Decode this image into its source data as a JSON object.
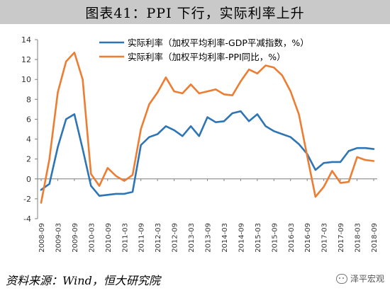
{
  "header": {
    "title": "图表41：PPI 下行，实际利率上升"
  },
  "footer": {
    "source": "资料来源：Wind，恒大研究院",
    "watermark": "泽平宏观",
    "watermark_icon": "wechat-icon"
  },
  "chart_data": {
    "type": "line",
    "title": "",
    "xlabel": "",
    "ylabel": "",
    "ylim": [
      -4,
      14
    ],
    "yticks": [
      -4,
      -2,
      0,
      2,
      4,
      6,
      8,
      10,
      12,
      14
    ],
    "grid": false,
    "legend_position": "top",
    "x": [
      "2008-09",
      "2008-12",
      "2009-03",
      "2009-06",
      "2009-09",
      "2009-12",
      "2010-03",
      "2010-06",
      "2010-09",
      "2010-12",
      "2011-03",
      "2011-06",
      "2011-09",
      "2011-12",
      "2012-03",
      "2012-06",
      "2012-09",
      "2012-12",
      "2013-03",
      "2013-06",
      "2013-09",
      "2013-12",
      "2014-03",
      "2014-06",
      "2014-09",
      "2014-12",
      "2015-03",
      "2015-06",
      "2015-09",
      "2015-12",
      "2016-03",
      "2016-06",
      "2016-09",
      "2016-12",
      "2017-03",
      "2017-06",
      "2017-09",
      "2017-12",
      "2018-03",
      "2018-06",
      "2018-09"
    ],
    "xtick_labels": [
      "2008-09",
      "2009-03",
      "2009-09",
      "2010-03",
      "2010-09",
      "2011-03",
      "2011-09",
      "2012-03",
      "2012-09",
      "2013-03",
      "2013-09",
      "2014-03",
      "2014-09",
      "2015-03",
      "2015-09",
      "2016-03",
      "2016-09",
      "2017-03",
      "2017-09",
      "2018-03",
      "2018-09"
    ],
    "series": [
      {
        "name": "实际利率（加权平均利率-GDP平减指数，%）",
        "color": "#2E75B6",
        "values": [
          -1.1,
          -0.5,
          3.2,
          6.0,
          6.5,
          3.0,
          -0.7,
          -1.7,
          -1.6,
          -1.5,
          -1.5,
          -1.3,
          3.4,
          4.2,
          4.5,
          5.3,
          4.9,
          4.3,
          5.3,
          4.3,
          6.2,
          5.7,
          5.8,
          6.6,
          6.8,
          5.8,
          6.5,
          5.3,
          4.8,
          4.5,
          4.2,
          3.5,
          2.5,
          0.9,
          1.6,
          1.7,
          1.7,
          2.8,
          3.1,
          3.1,
          3.0
        ]
      },
      {
        "name": "实际利率（加权平均利率-PPI同比，%）",
        "color": "#ED7D31",
        "values": [
          -2.4,
          2.0,
          8.7,
          11.8,
          12.7,
          10.0,
          0.5,
          -0.7,
          1.1,
          0.3,
          -0.2,
          0.4,
          5.0,
          7.5,
          8.7,
          10.2,
          8.8,
          8.6,
          9.5,
          8.6,
          8.8,
          9.0,
          8.5,
          8.4,
          9.8,
          11.0,
          10.6,
          11.4,
          11.2,
          10.4,
          8.8,
          6.5,
          2.3,
          -1.8,
          -0.8,
          0.8,
          -0.4,
          -0.3,
          2.2,
          1.9,
          1.8
        ]
      }
    ]
  }
}
